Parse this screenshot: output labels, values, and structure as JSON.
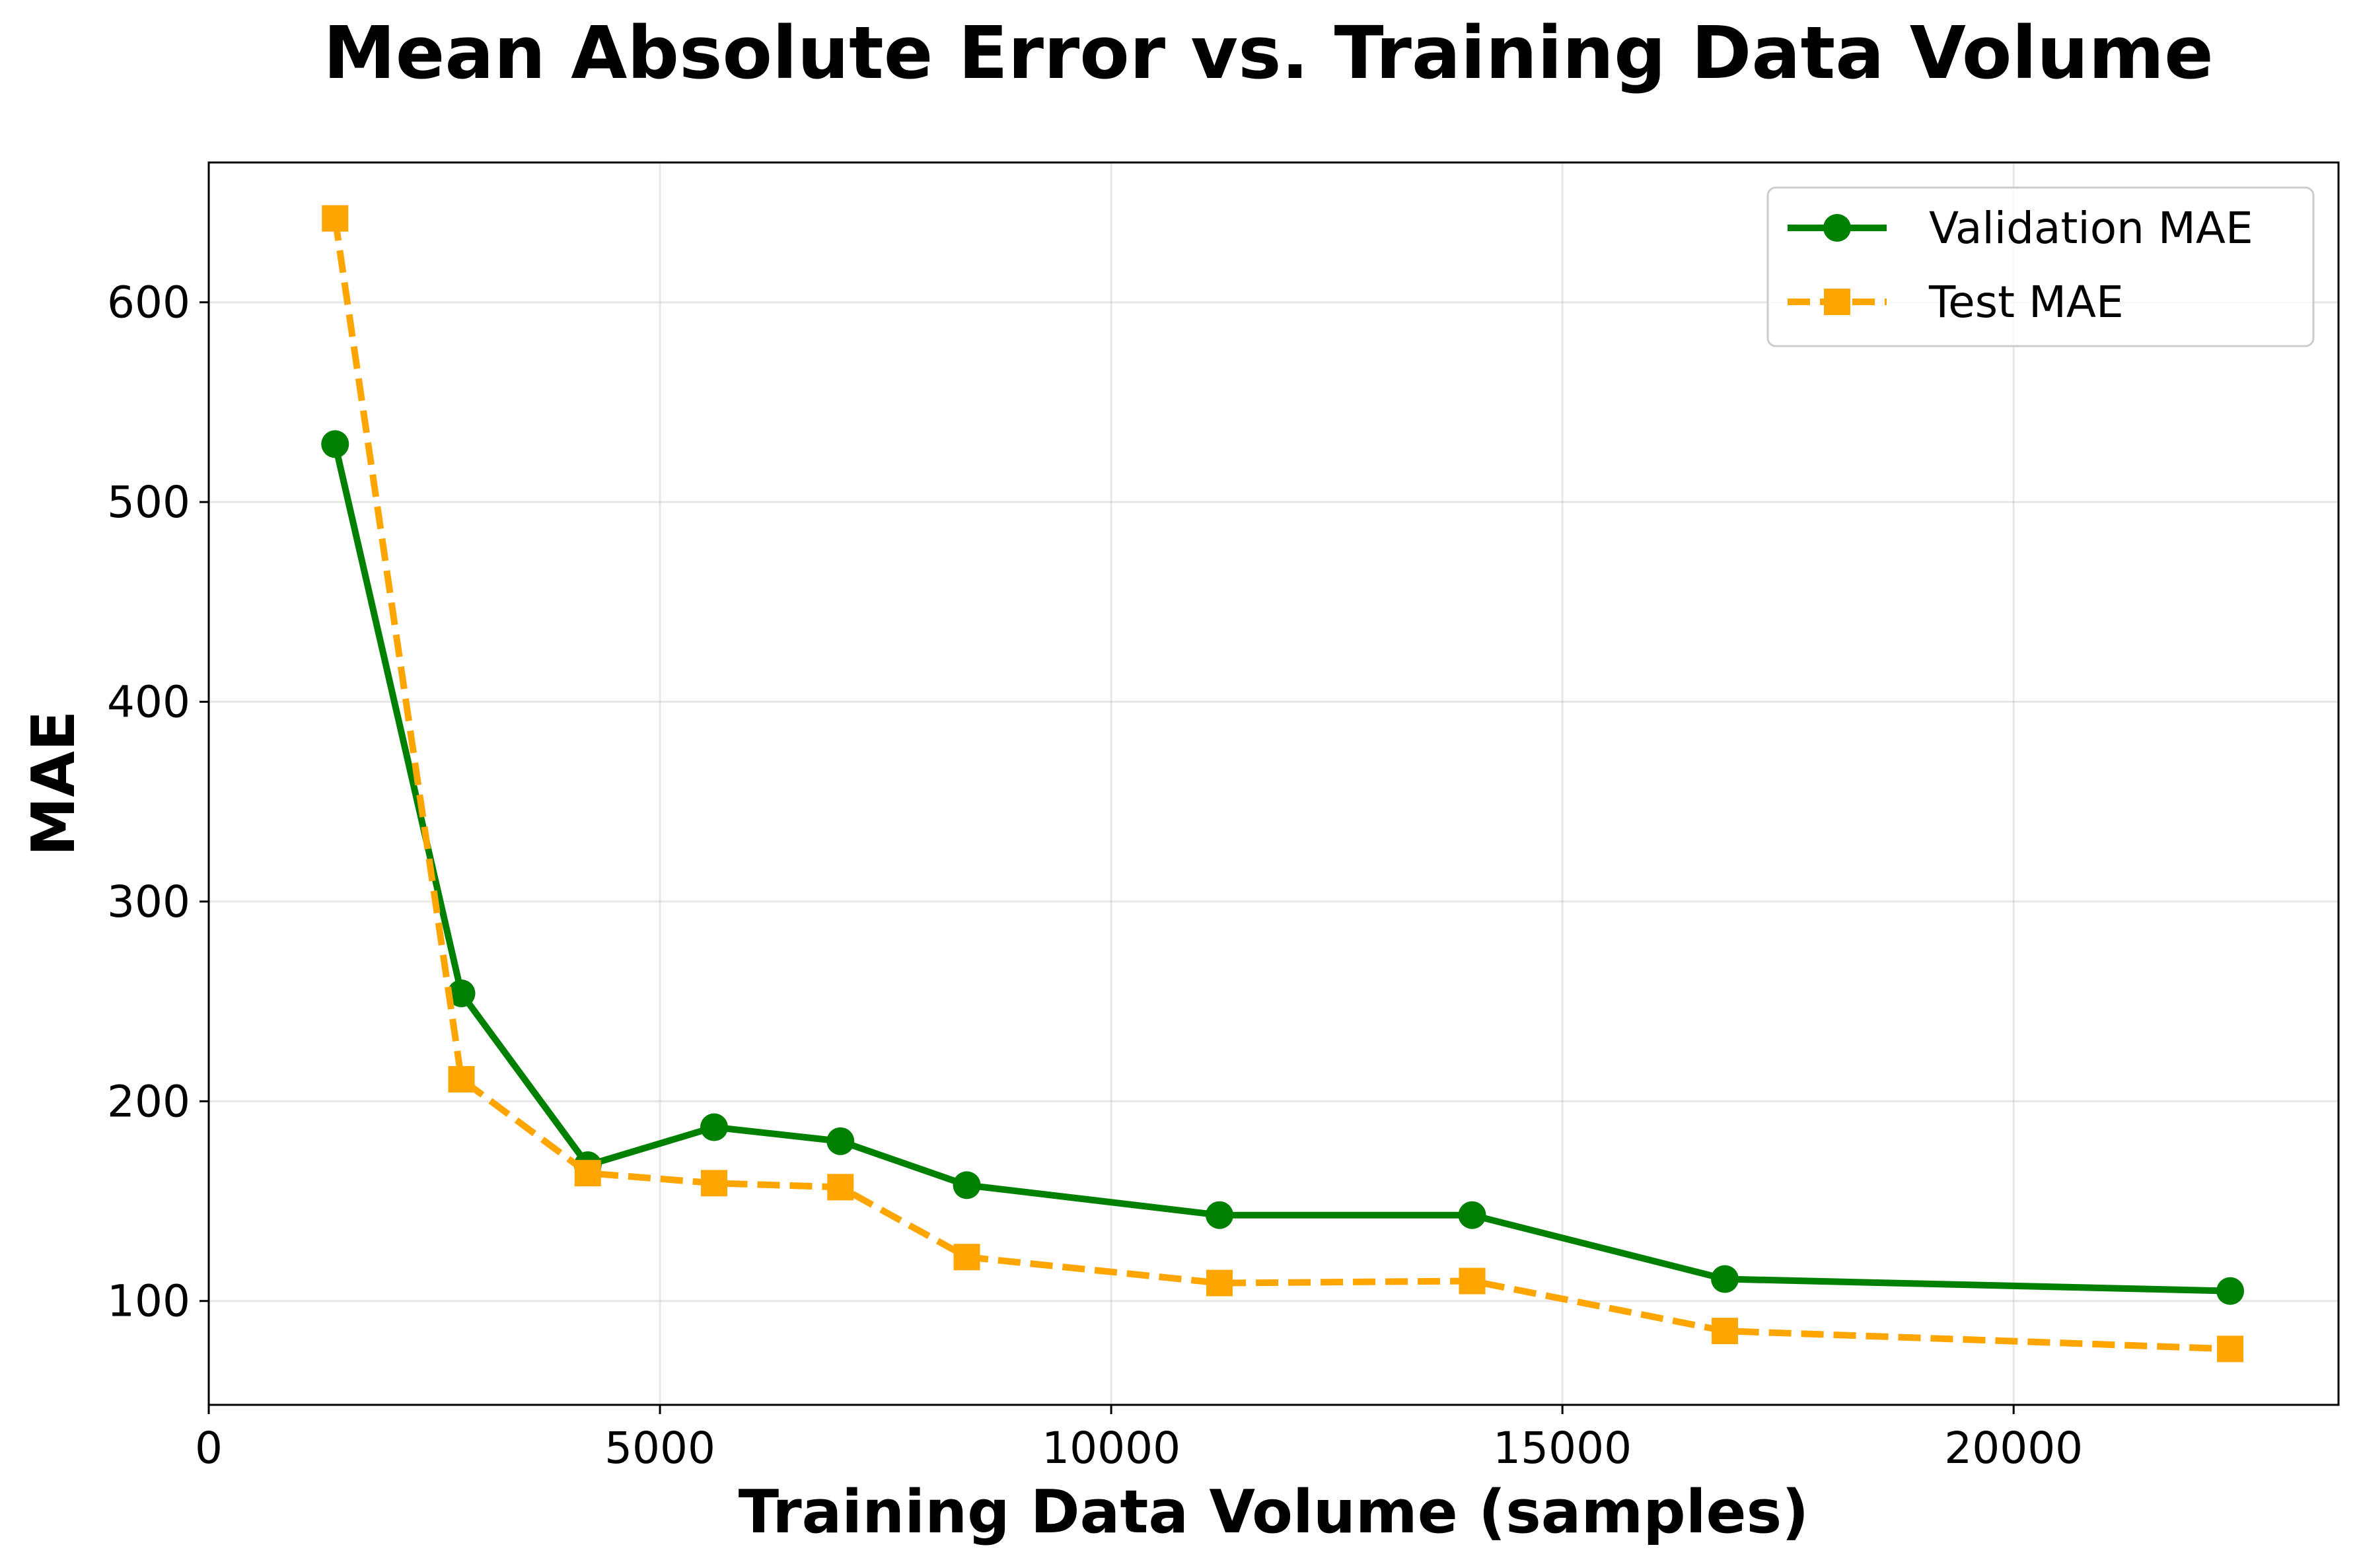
{
  "chart_data": {
    "type": "line",
    "title": "Mean Absolute Error vs. Training Data Volume",
    "xlabel": "Training Data Volume (samples)",
    "ylabel": "MAE",
    "xlim": [
      0,
      23600
    ],
    "ylim": [
      48,
      670
    ],
    "xticks": [
      0,
      5000,
      10000,
      15000,
      20000
    ],
    "yticks": [
      100,
      200,
      300,
      400,
      500,
      600
    ],
    "grid": true,
    "legend_position": "top-right",
    "x": [
      1400,
      2800,
      4200,
      5600,
      7000,
      8400,
      11200,
      14000,
      16800,
      22400
    ],
    "series": [
      {
        "name": "Validation MAE",
        "color": "#008000",
        "line_style": "solid",
        "marker": "circle",
        "values": [
          529,
          254,
          168,
          187,
          180,
          158,
          143,
          143,
          111,
          105
        ]
      },
      {
        "name": "Test MAE",
        "color": "#FFA500",
        "line_style": "dashed",
        "marker": "square",
        "values": [
          642,
          211,
          164,
          159,
          157,
          122,
          109,
          110,
          85,
          76
        ]
      }
    ]
  }
}
